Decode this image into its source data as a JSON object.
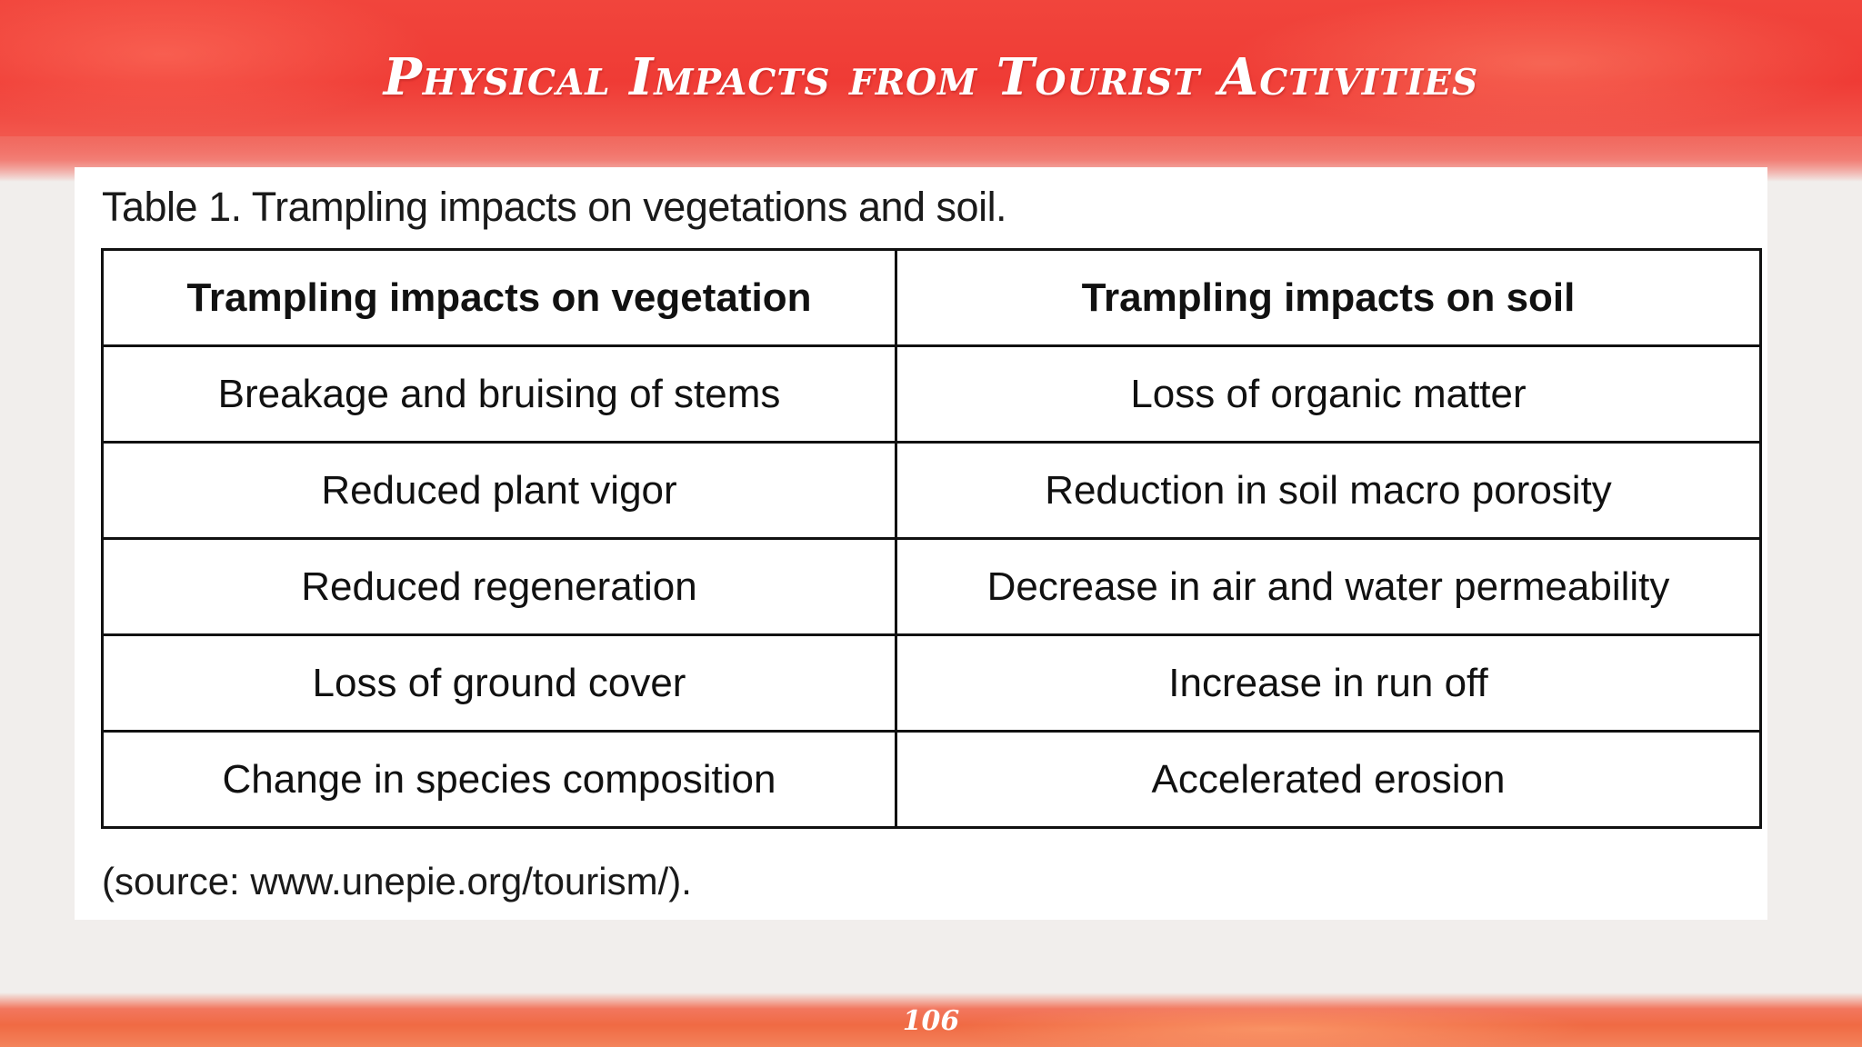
{
  "slide": {
    "title": "Physical Impacts from Tourist Activities",
    "page_number": "106"
  },
  "table": {
    "caption": "Table 1. Trampling impacts on vegetations and soil.",
    "headers": [
      "Trampling impacts on vegetation",
      "Trampling impacts on soil"
    ],
    "rows": [
      [
        "Breakage and bruising of stems",
        "Loss of organic matter"
      ],
      [
        "Reduced plant vigor",
        "Reduction in soil macro porosity"
      ],
      [
        "Reduced regeneration",
        "Decrease in air and water permeability"
      ],
      [
        "Loss of ground cover",
        "Increase in run off"
      ],
      [
        "Change in species composition",
        "Accelerated erosion"
      ]
    ],
    "source": "(source: www.unepie.org/tourism/)."
  },
  "colors": {
    "band_red": "#ef3b35",
    "band_orange": "#f06a43",
    "title_text": "#ffffff",
    "table_border": "#111111"
  }
}
